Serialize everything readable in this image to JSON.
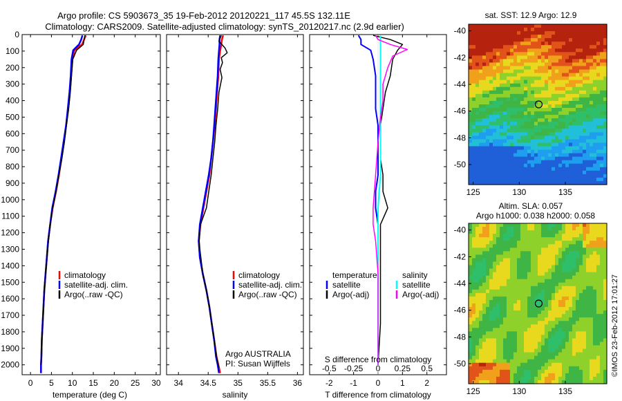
{
  "header": {
    "line1": "Argo profile: CS 5903673_35 19-Feb-2012 20120221_117 45.5S 132.11E",
    "line2": "Climatology: CARS2009. Satellite-adjusted climatology: synTS_20120217.nc (2.9d earlier)"
  },
  "colors": {
    "climatology": "#ff0000",
    "satellite": "#0000ff",
    "argo": "#000000",
    "sal_satellite": "#00ffff",
    "sal_argo": "#ff00ff"
  },
  "chart_data": [
    {
      "type": "line",
      "xlabel": "temperature (deg C)",
      "ylabel": "",
      "xlim": [
        -2,
        31
      ],
      "ylim": [
        2060,
        0
      ],
      "xticks": [
        0,
        5,
        10,
        15,
        20,
        25,
        30
      ],
      "yticks": [
        0,
        100,
        200,
        300,
        400,
        500,
        600,
        700,
        800,
        900,
        1000,
        1100,
        1200,
        1300,
        1400,
        1500,
        1600,
        1700,
        1800,
        1900,
        2000
      ],
      "legend": [
        "climatology",
        "satellite-adj. clim.",
        "Argo(..raw -QC)"
      ],
      "series": [
        {
          "name": "climatology",
          "x": [
            13.2,
            12.8,
            12.3,
            10.5,
            10.0,
            9.7,
            9.4,
            9.0,
            8.5,
            8.0,
            7.4,
            6.8,
            6.1,
            5.3,
            4.7,
            4.2,
            3.9,
            3.6,
            3.3,
            3.1,
            2.9,
            2.7,
            2.6,
            2.5,
            2.5
          ],
          "y": [
            5,
            30,
            60,
            95,
            150,
            250,
            350,
            450,
            550,
            650,
            750,
            850,
            950,
            1050,
            1150,
            1250,
            1350,
            1450,
            1550,
            1650,
            1750,
            1850,
            1950,
            2000,
            2050
          ]
        },
        {
          "name": "satellite-adj. clim.",
          "x": [
            12.4,
            12.1,
            11.6,
            10.2,
            9.8,
            9.6,
            9.3,
            8.9,
            8.5,
            7.9,
            7.3,
            6.7,
            6.0,
            5.2,
            4.7,
            4.2,
            3.9,
            3.6,
            3.3,
            3.1,
            2.9,
            2.7,
            2.6,
            2.5,
            2.5
          ],
          "y": [
            5,
            30,
            60,
            95,
            150,
            250,
            350,
            450,
            550,
            650,
            750,
            850,
            950,
            1050,
            1150,
            1250,
            1350,
            1450,
            1550,
            1650,
            1750,
            1850,
            1950,
            2000,
            2050
          ]
        },
        {
          "name": "Argo(..raw -QC)",
          "x": [
            13.0,
            12.8,
            12.6,
            11.0,
            10.1,
            9.8,
            9.5,
            9.1,
            8.6,
            8.1,
            7.5,
            6.8,
            6.1,
            5.3,
            4.7,
            4.3,
            3.9,
            3.6,
            3.3,
            3.1,
            2.9,
            2.7,
            2.6,
            2.5
          ],
          "y": [
            5,
            30,
            60,
            95,
            150,
            250,
            350,
            450,
            550,
            650,
            750,
            850,
            950,
            1050,
            1150,
            1250,
            1350,
            1450,
            1550,
            1650,
            1750,
            1850,
            1950,
            2000
          ]
        }
      ]
    },
    {
      "type": "line",
      "xlabel": "salinity",
      "xlim": [
        33.8,
        36.1
      ],
      "ylim": [
        2060,
        0
      ],
      "xticks": [
        34,
        34.5,
        35,
        35.5,
        36
      ],
      "legend": [
        "climatology",
        "satellite-adj. clim.",
        "Argo(..raw -QC)"
      ],
      "annotation": [
        "Argo AUSTRALIA",
        "PI: Susan Wijffels"
      ],
      "series": [
        {
          "name": "climatology",
          "x": [
            34.75,
            34.73,
            34.72,
            34.7,
            34.68,
            34.67,
            34.65,
            34.63,
            34.61,
            34.58,
            34.55,
            34.52,
            34.47,
            34.42,
            34.37,
            34.34,
            34.36,
            34.41,
            34.47,
            34.52,
            34.56,
            34.6,
            34.64,
            34.67,
            34.69,
            34.7
          ],
          "y": [
            5,
            30,
            60,
            100,
            150,
            250,
            350,
            450,
            550,
            650,
            750,
            850,
            950,
            1050,
            1150,
            1250,
            1350,
            1450,
            1550,
            1650,
            1750,
            1850,
            1950,
            2000,
            2030,
            2050
          ]
        },
        {
          "name": "satellite-adj. clim.",
          "x": [
            34.7,
            34.69,
            34.69,
            34.68,
            34.67,
            34.66,
            34.64,
            34.62,
            34.6,
            34.58,
            34.55,
            34.51,
            34.46,
            34.41,
            34.36,
            34.34,
            34.36,
            34.41,
            34.47,
            34.52,
            34.56,
            34.6,
            34.63,
            34.66,
            34.68
          ],
          "y": [
            5,
            30,
            60,
            100,
            150,
            250,
            350,
            450,
            550,
            650,
            750,
            850,
            950,
            1050,
            1150,
            1250,
            1350,
            1450,
            1550,
            1650,
            1750,
            1850,
            1950,
            2000,
            2050
          ]
        },
        {
          "name": "Argo(..raw -QC)",
          "x": [
            34.72,
            34.68,
            34.78,
            34.82,
            34.72,
            34.74,
            34.7,
            34.73,
            34.68,
            34.66,
            34.63,
            34.61,
            34.58,
            34.55,
            34.51,
            34.47,
            34.42,
            34.37,
            34.35,
            34.36,
            34.41,
            34.47,
            34.52,
            34.56,
            34.6,
            34.64,
            34.67,
            34.68
          ],
          "y": [
            5,
            40,
            80,
            110,
            140,
            170,
            210,
            260,
            350,
            450,
            550,
            650,
            750,
            850,
            950,
            1050,
            1100,
            1150,
            1250,
            1300,
            1450,
            1550,
            1650,
            1750,
            1850,
            1950,
            2000,
            2020
          ]
        }
      ]
    },
    {
      "type": "line",
      "xlabel": "T difference from climatology",
      "xlabel_top": "S difference from climatology",
      "xlim": [
        -2.8,
        2.8
      ],
      "ylim": [
        2060,
        0
      ],
      "xticks": [
        -2,
        -1,
        0,
        1,
        2
      ],
      "xticks_top": [
        -0.5,
        -0.25,
        0,
        0.25,
        0.5
      ],
      "legend_temperature": {
        "title": "temperature",
        "items": [
          "satellite",
          "Argo(-adj)"
        ]
      },
      "legend_salinity": {
        "title": "salinity",
        "items": [
          "satellite",
          "Argo(-adj)"
        ]
      },
      "series": [
        {
          "name": "temperature satellite",
          "x": [
            -0.8,
            -0.7,
            -0.7,
            -0.3,
            -0.2,
            -0.1,
            -0.1,
            -0.1,
            0,
            0,
            0,
            0,
            -0.1,
            -0.1,
            0,
            0,
            0,
            0,
            0,
            0,
            0
          ],
          "y": [
            5,
            30,
            60,
            95,
            150,
            250,
            350,
            450,
            550,
            650,
            750,
            850,
            950,
            1050,
            1150,
            1250,
            1350,
            1450,
            1550,
            1750,
            2000
          ]
        },
        {
          "name": "temperature Argo(-adj)",
          "x": [
            -0.2,
            0.5,
            1.0,
            0.8,
            0.6,
            0.5,
            0.3,
            0.2,
            0.1,
            0.1,
            0.1,
            0.2,
            0.2,
            0.4,
            0.1,
            0.1,
            0.1,
            0.1,
            0.1,
            0.1,
            0
          ],
          "y": [
            5,
            30,
            60,
            95,
            150,
            250,
            350,
            450,
            550,
            650,
            750,
            850,
            950,
            1050,
            1150,
            1250,
            1350,
            1450,
            1550,
            1750,
            2000
          ]
        },
        {
          "name": "salinity satellite",
          "x": [
            0.1,
            0.1,
            0.1,
            0.1,
            0.1,
            0.1,
            0.1,
            0.1,
            0.1,
            0.1,
            0.1,
            0,
            0,
            0,
            0,
            0
          ],
          "y": [
            5,
            30,
            60,
            100,
            150,
            250,
            350,
            450,
            550,
            650,
            850,
            1050,
            1250,
            1450,
            1750,
            2000
          ]
        },
        {
          "name": "salinity Argo(-adj)",
          "x": [
            -0.1,
            0,
            0.5,
            1.2,
            0.6,
            0.4,
            0.2,
            0.2,
            0.1,
            0,
            -0.1,
            -0.2,
            -0.2,
            -0.1,
            0,
            0,
            0
          ],
          "y": [
            5,
            30,
            60,
            90,
            130,
            200,
            300,
            400,
            500,
            650,
            850,
            1050,
            1150,
            1250,
            1450,
            1750,
            2000
          ]
        }
      ]
    }
  ],
  "map_top": {
    "title": "sat. SST: 12.9  Argo: 12.9",
    "yticks": [
      -40,
      -42,
      -44,
      -46,
      -48,
      -50
    ],
    "xticks": [
      125,
      130,
      135
    ],
    "lon_range": [
      124.5,
      139.5
    ],
    "lat_range": [
      -51.5,
      -39.5
    ],
    "argo_lon": 132.11,
    "argo_lat": -45.5
  },
  "map_bottom": {
    "title1": "Altim. SLA: 0.057",
    "title2": "Argo h1000: 0.038 h2000: 0.058",
    "yticks": [
      -40,
      -42,
      -44,
      -46,
      -48,
      -50
    ],
    "xticks": [
      125,
      130,
      135
    ],
    "lon_range": [
      124.5,
      139.5
    ],
    "lat_range": [
      -51.5,
      -39.5
    ],
    "argo_lon": 132.11,
    "argo_lat": -45.5
  },
  "footer": {
    "credit": "©IMOS 23-Feb-2012 17:01:27"
  }
}
